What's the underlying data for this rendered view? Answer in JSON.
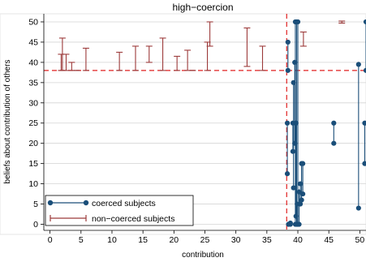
{
  "chart_data": {
    "type": "range-plot",
    "title": "high−coercion",
    "xlabel": "contribution",
    "ylabel": "beliefs about contribution of others",
    "xlim": [
      -1,
      51
    ],
    "ylim": [
      -1.5,
      52
    ],
    "xticks": [
      0,
      5,
      10,
      15,
      20,
      25,
      30,
      35,
      40,
      45,
      50
    ],
    "yticks": [
      0,
      5,
      10,
      15,
      20,
      25,
      30,
      35,
      40,
      45,
      50
    ],
    "grid": "horizontal",
    "legend_position": "bottom-left",
    "reference_lines": {
      "x": 38.2,
      "y": 38
    },
    "colors": {
      "coerced": "#1a4e79",
      "non_coerced": "#9c3a3a",
      "reference": "#e02020",
      "grid": "#d4d4d4"
    },
    "series": [
      {
        "name": "coerced subjects",
        "style": "dot-range",
        "ranges": [
          [
            38.3,
            12.5,
            25
          ],
          [
            38.4,
            38,
            45
          ],
          [
            38.5,
            0,
            0
          ],
          [
            38.8,
            0,
            0.3
          ],
          [
            39.2,
            18,
            25
          ],
          [
            39.3,
            9,
            35
          ],
          [
            39.5,
            20,
            40
          ],
          [
            39.6,
            0,
            50
          ],
          [
            39.7,
            2,
            25
          ],
          [
            39.8,
            0,
            50
          ],
          [
            39.9,
            0,
            5
          ],
          [
            40.0,
            0,
            50
          ],
          [
            40.2,
            0,
            8
          ],
          [
            40.4,
            5,
            10
          ],
          [
            40.6,
            6,
            15
          ],
          [
            40.8,
            7.5,
            15
          ],
          [
            45.8,
            20,
            25
          ],
          [
            49.8,
            4,
            39.5
          ],
          [
            50.8,
            15,
            25
          ],
          [
            51.0,
            38,
            50
          ]
        ]
      },
      {
        "name": "non−coerced subjects",
        "style": "capped-range",
        "ranges": [
          [
            1.8,
            38,
            42
          ],
          [
            2.0,
            38,
            46
          ],
          [
            2.6,
            38,
            42
          ],
          [
            3.5,
            38,
            40
          ],
          [
            4.3,
            38,
            38
          ],
          [
            5.8,
            38,
            43.5
          ],
          [
            11.2,
            38,
            42.5
          ],
          [
            13.8,
            38,
            44
          ],
          [
            16.0,
            40,
            44
          ],
          [
            18.2,
            38,
            46
          ],
          [
            20.5,
            38,
            41.5
          ],
          [
            22.2,
            38,
            43
          ],
          [
            23.0,
            38,
            38
          ],
          [
            25.4,
            38,
            45
          ],
          [
            25.8,
            44,
            50
          ],
          [
            31.8,
            39,
            48.5
          ],
          [
            34.3,
            38,
            44
          ],
          [
            40.9,
            44,
            47.5
          ],
          [
            47.1,
            49.7,
            50.2
          ]
        ]
      }
    ]
  }
}
